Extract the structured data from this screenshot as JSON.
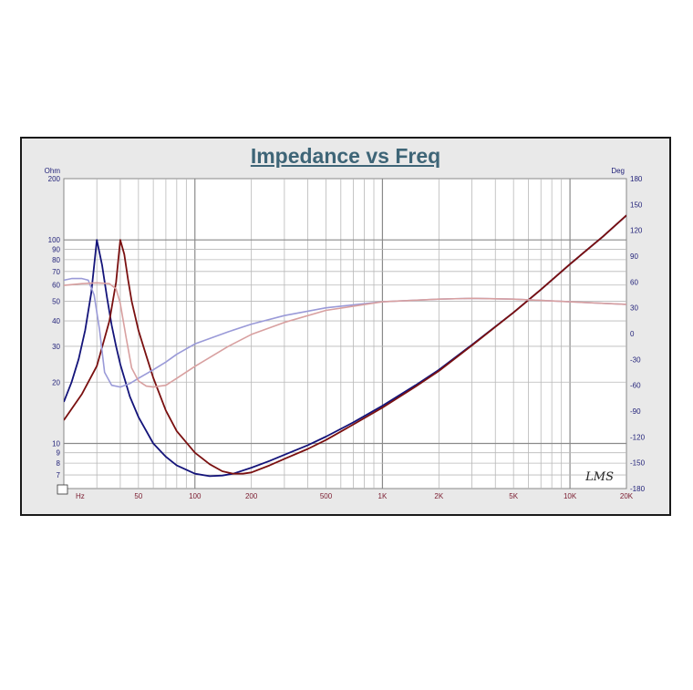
{
  "chart_data": {
    "type": "line",
    "title": "Impedance vs Freq",
    "left_unit": "Ohm",
    "right_unit": "Deg",
    "x_unit": "Hz",
    "watermark": "LMS",
    "x_scale": "log",
    "y_left_scale": "log",
    "xlim": [
      20,
      20000
    ],
    "ylim_left": [
      6,
      200
    ],
    "ylim_right": [
      -180,
      180
    ],
    "grid": true,
    "x_ticks": [
      {
        "v": 50,
        "label": "50"
      },
      {
        "v": 100,
        "label": "100"
      },
      {
        "v": 200,
        "label": "200"
      },
      {
        "v": 500,
        "label": "500"
      },
      {
        "v": 1000,
        "label": "1K"
      },
      {
        "v": 2000,
        "label": "2K"
      },
      {
        "v": 5000,
        "label": "5K"
      },
      {
        "v": 10000,
        "label": "10K"
      },
      {
        "v": 20000,
        "label": "20K"
      }
    ],
    "y_left_ticks": [
      {
        "v": 200,
        "label": "200"
      },
      {
        "v": 100,
        "label": "100"
      },
      {
        "v": 90,
        "label": "90"
      },
      {
        "v": 80,
        "label": "80"
      },
      {
        "v": 70,
        "label": "70"
      },
      {
        "v": 60,
        "label": "60"
      },
      {
        "v": 50,
        "label": "50"
      },
      {
        "v": 40,
        "label": "40"
      },
      {
        "v": 30,
        "label": "30"
      },
      {
        "v": 20,
        "label": "20"
      },
      {
        "v": 10,
        "label": "10"
      },
      {
        "v": 9,
        "label": "9"
      },
      {
        "v": 8,
        "label": "8"
      },
      {
        "v": 7,
        "label": "7"
      }
    ],
    "y_right_ticks": [
      180,
      150,
      120,
      90,
      60,
      30,
      0,
      -30,
      -60,
      -90,
      -120,
      -150,
      -180
    ],
    "series": [
      {
        "color": "#14147a",
        "axis": "left",
        "kind": "impedance",
        "x": [
          20,
          22,
          24,
          26,
          28,
          30,
          32,
          34,
          36,
          38,
          40,
          45,
          50,
          60,
          70,
          80,
          100,
          120,
          140,
          160,
          200,
          250,
          300,
          400,
          500,
          700,
          1000,
          1500,
          2000,
          3000,
          5000,
          7000,
          10000,
          15000,
          20000
        ],
        "y": [
          16,
          20,
          26,
          36,
          55,
          100,
          75,
          52,
          38,
          30,
          24.5,
          17,
          13.5,
          10,
          8.6,
          7.8,
          7.1,
          6.9,
          6.95,
          7.1,
          7.6,
          8.2,
          8.8,
          9.8,
          10.8,
          12.7,
          15.3,
          19.3,
          23,
          30.5,
          44,
          57,
          76,
          104,
          132
        ]
      },
      {
        "color": "#7a1010",
        "axis": "left",
        "kind": "impedance",
        "x": [
          20,
          25,
          30,
          35,
          38,
          40,
          42,
          44,
          46,
          50,
          55,
          60,
          70,
          80,
          100,
          120,
          140,
          160,
          180,
          200,
          250,
          300,
          400,
          500,
          700,
          1000,
          1500,
          2000,
          3000,
          5000,
          7000,
          10000,
          15000,
          20000
        ],
        "y": [
          13,
          17.5,
          24,
          40,
          62,
          100,
          85,
          64,
          50,
          36,
          27,
          21,
          14.5,
          11.5,
          9,
          7.9,
          7.3,
          7.1,
          7.1,
          7.2,
          7.8,
          8.4,
          9.4,
          10.4,
          12.4,
          15,
          19,
          22.7,
          30.3,
          44,
          57,
          76,
          104,
          132
        ]
      },
      {
        "color": "#9a9ad8",
        "axis": "right",
        "kind": "phase",
        "x": [
          20,
          22,
          25,
          27,
          29,
          31,
          33,
          36,
          40,
          45,
          50,
          60,
          70,
          80,
          100,
          150,
          200,
          300,
          500,
          1000,
          2000,
          3000,
          5000,
          10000,
          20000
        ],
        "y": [
          62,
          64,
          64,
          62,
          45,
          5,
          -45,
          -60,
          -62,
          -58,
          -52,
          -42,
          -33,
          -24,
          -12,
          2,
          11,
          21,
          30,
          37,
          40,
          41,
          40,
          37,
          34
        ]
      },
      {
        "color": "#d8a0a0",
        "axis": "right",
        "kind": "phase",
        "x": [
          20,
          25,
          30,
          35,
          38,
          40,
          43,
          46,
          50,
          55,
          60,
          70,
          80,
          100,
          150,
          200,
          300,
          500,
          1000,
          2000,
          3000,
          5000,
          10000,
          20000
        ],
        "y": [
          56,
          58,
          59,
          58,
          52,
          35,
          -5,
          -40,
          -55,
          -61,
          -62,
          -60,
          -52,
          -38,
          -15,
          -1,
          13,
          27,
          37,
          40,
          41,
          40,
          37,
          34
        ]
      }
    ]
  }
}
